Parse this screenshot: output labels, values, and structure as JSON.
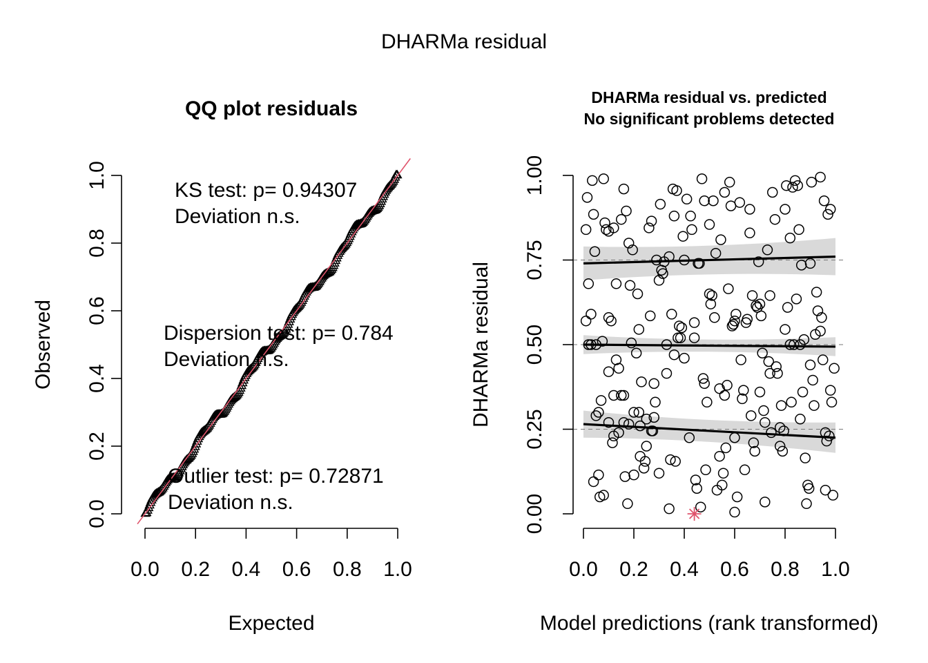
{
  "main_title": "DHARMa residual",
  "chart_data": [
    {
      "type": "scatter",
      "title": "QQ plot residuals",
      "xlabel": "Expected",
      "ylabel": "Observed",
      "xlim": [
        0,
        1
      ],
      "ylim": [
        0,
        1
      ],
      "x_ticks": [
        "0.0",
        "0.2",
        "0.4",
        "0.6",
        "0.8",
        "1.0"
      ],
      "y_ticks": [
        "0.0",
        "0.2",
        "0.4",
        "0.6",
        "0.8",
        "1.0"
      ],
      "reference_line": {
        "slope": 1,
        "intercept": 0,
        "color": "#DF536B"
      },
      "point_marker": "triangle",
      "n_points": 250,
      "annotations": [
        {
          "line1": "KS test: p= 0.94307",
          "line2": "Deviation  n.s."
        },
        {
          "line1": "Dispersion test: p= 0.784",
          "line2": "Deviation  n.s."
        },
        {
          "line1": "Outlier test: p= 0.72871",
          "line2": "Deviation  n.s."
        }
      ]
    },
    {
      "type": "scatter",
      "title_line1": "DHARMa residual vs. predicted",
      "title_line2": "No significant problems detected",
      "xlabel": "Model predictions (rank transformed)",
      "ylabel": "DHARMa residual",
      "xlim": [
        0,
        1
      ],
      "ylim": [
        0,
        1
      ],
      "x_ticks": [
        "0.0",
        "0.2",
        "0.4",
        "0.6",
        "0.8",
        "1.0"
      ],
      "y_ticks": [
        "0.00",
        "0.25",
        "0.50",
        "0.75",
        "1.00"
      ],
      "reference_lines_y": [
        0.25,
        0.5,
        0.75
      ],
      "quantile_fits": [
        {
          "quantile": 0.25,
          "y_start": 0.265,
          "y_end": 0.225,
          "band_halfwidth_start": 0.03,
          "band_halfwidth_end": 0.035
        },
        {
          "quantile": 0.5,
          "y_start": 0.5,
          "y_end": 0.494,
          "band_halfwidth_start": 0.018,
          "band_halfwidth_end": 0.018
        },
        {
          "quantile": 0.75,
          "y_start": 0.74,
          "y_end": 0.76,
          "band_halfwidth_start": 0.04,
          "band_halfwidth_end": 0.045
        }
      ],
      "outliers": [
        {
          "x": 0.44,
          "y": 0.0,
          "color": "#DF536B"
        }
      ],
      "points": [
        [
          0.01,
          0.84
        ],
        [
          0.01,
          0.57
        ],
        [
          0.015,
          0.935
        ],
        [
          0.02,
          0.5
        ],
        [
          0.02,
          0.68
        ],
        [
          0.03,
          0.59
        ],
        [
          0.03,
          0.5
        ],
        [
          0.035,
          0.985
        ],
        [
          0.04,
          0.885
        ],
        [
          0.045,
          0.775
        ],
        [
          0.05,
          0.29
        ],
        [
          0.05,
          0.5
        ],
        [
          0.06,
          0.115
        ],
        [
          0.065,
          0.05
        ],
        [
          0.07,
          0.335
        ],
        [
          0.075,
          0.51
        ],
        [
          0.08,
          0.99
        ],
        [
          0.085,
          0.86
        ],
        [
          0.09,
          0.84
        ],
        [
          0.1,
          0.835
        ],
        [
          0.1,
          0.42
        ],
        [
          0.1,
          0.58
        ],
        [
          0.11,
          0.57
        ],
        [
          0.115,
          0.21
        ],
        [
          0.12,
          0.845
        ],
        [
          0.12,
          0.23
        ],
        [
          0.13,
          0.68
        ],
        [
          0.13,
          0.455
        ],
        [
          0.14,
          0.43
        ],
        [
          0.15,
          0.35
        ],
        [
          0.15,
          0.87
        ],
        [
          0.16,
          0.27
        ],
        [
          0.16,
          0.35
        ],
        [
          0.165,
          0.11
        ],
        [
          0.17,
          0.895
        ],
        [
          0.175,
          0.03
        ],
        [
          0.18,
          0.8
        ],
        [
          0.185,
          0.675
        ],
        [
          0.19,
          0.505
        ],
        [
          0.195,
          0.78
        ],
        [
          0.2,
          0.115
        ],
        [
          0.2,
          0.3
        ],
        [
          0.21,
          0.475
        ],
        [
          0.215,
          0.65
        ],
        [
          0.22,
          0.545
        ],
        [
          0.225,
          0.17
        ],
        [
          0.225,
          0.26
        ],
        [
          0.23,
          0.39
        ],
        [
          0.24,
          0.135
        ],
        [
          0.245,
          0.155
        ],
        [
          0.25,
          0.28
        ],
        [
          0.25,
          0.2
        ],
        [
          0.26,
          0.845
        ],
        [
          0.265,
          0.585
        ],
        [
          0.27,
          0.865
        ],
        [
          0.275,
          0.245
        ],
        [
          0.28,
          0.385
        ],
        [
          0.285,
          0.33
        ],
        [
          0.29,
          0.75
        ],
        [
          0.3,
          0.12
        ],
        [
          0.305,
          0.915
        ],
        [
          0.31,
          0.72
        ],
        [
          0.315,
          0.71
        ],
        [
          0.32,
          0.745
        ],
        [
          0.33,
          0.5
        ],
        [
          0.33,
          0.415
        ],
        [
          0.34,
          0.015
        ],
        [
          0.345,
          0.16
        ],
        [
          0.35,
          0.59
        ],
        [
          0.355,
          0.96
        ],
        [
          0.36,
          0.88
        ],
        [
          0.365,
          0.155
        ],
        [
          0.37,
          0.955
        ],
        [
          0.375,
          0.52
        ],
        [
          0.38,
          0.555
        ],
        [
          0.385,
          0.52
        ],
        [
          0.39,
          0.55
        ],
        [
          0.395,
          0.82
        ],
        [
          0.4,
          0.46
        ],
        [
          0.4,
          0.75
        ],
        [
          0.41,
          0.93
        ],
        [
          0.42,
          0.225
        ],
        [
          0.425,
          0.88
        ],
        [
          0.43,
          0.84
        ],
        [
          0.44,
          0.565
        ],
        [
          0.445,
          0.1
        ],
        [
          0.45,
          0.075
        ],
        [
          0.455,
          0.74
        ],
        [
          0.46,
          0.74
        ],
        [
          0.465,
          0.02
        ],
        [
          0.47,
          0.99
        ],
        [
          0.475,
          0.4
        ],
        [
          0.48,
          0.925
        ],
        [
          0.485,
          0.13
        ],
        [
          0.49,
          0.33
        ],
        [
          0.5,
          0.65
        ],
        [
          0.5,
          0.855
        ],
        [
          0.505,
          0.62
        ],
        [
          0.51,
          0.645
        ],
        [
          0.515,
          0.925
        ],
        [
          0.52,
          0.58
        ],
        [
          0.525,
          0.77
        ],
        [
          0.53,
          0.07
        ],
        [
          0.54,
          0.17
        ],
        [
          0.545,
          0.81
        ],
        [
          0.55,
          0.085
        ],
        [
          0.555,
          0.12
        ],
        [
          0.56,
          0.95
        ],
        [
          0.565,
          0.195
        ],
        [
          0.57,
          0.38
        ],
        [
          0.575,
          0.665
        ],
        [
          0.58,
          0.98
        ],
        [
          0.585,
          0.91
        ],
        [
          0.59,
          0.555
        ],
        [
          0.595,
          0.56
        ],
        [
          0.6,
          0.225
        ],
        [
          0.6,
          0.57
        ],
        [
          0.605,
          0.59
        ],
        [
          0.61,
          0.05
        ],
        [
          0.62,
          0.92
        ],
        [
          0.625,
          0.455
        ],
        [
          0.63,
          0.34
        ],
        [
          0.635,
          0.365
        ],
        [
          0.64,
          0.13
        ],
        [
          0.645,
          0.565
        ],
        [
          0.65,
          0.575
        ],
        [
          0.66,
          0.9
        ],
        [
          0.665,
          0.29
        ],
        [
          0.67,
          0.645
        ],
        [
          0.675,
          0.21
        ],
        [
          0.68,
          0.185
        ],
        [
          0.685,
          0.615
        ],
        [
          0.69,
          0.61
        ],
        [
          0.695,
          0.745
        ],
        [
          0.7,
          0.62
        ],
        [
          0.705,
          0.585
        ],
        [
          0.71,
          0.475
        ],
        [
          0.715,
          0.305
        ],
        [
          0.72,
          0.035
        ],
        [
          0.72,
          0.27
        ],
        [
          0.73,
          0.78
        ],
        [
          0.735,
          0.45
        ],
        [
          0.74,
          0.415
        ],
        [
          0.745,
          0.24
        ],
        [
          0.75,
          0.95
        ],
        [
          0.76,
          0.87
        ],
        [
          0.765,
          0.435
        ],
        [
          0.77,
          0.415
        ],
        [
          0.78,
          0.2
        ],
        [
          0.785,
          0.32
        ],
        [
          0.79,
          0.185
        ],
        [
          0.795,
          0.245
        ],
        [
          0.8,
          0.545
        ],
        [
          0.8,
          0.9
        ],
        [
          0.805,
          0.97
        ],
        [
          0.81,
          0.61
        ],
        [
          0.82,
          0.815
        ],
        [
          0.825,
          0.33
        ],
        [
          0.83,
          0.965
        ],
        [
          0.835,
          0.5
        ],
        [
          0.84,
          0.985
        ],
        [
          0.845,
          0.635
        ],
        [
          0.85,
          0.97
        ],
        [
          0.855,
          0.84
        ],
        [
          0.86,
          0.5
        ],
        [
          0.865,
          0.735
        ],
        [
          0.87,
          0.36
        ],
        [
          0.875,
          0.515
        ],
        [
          0.88,
          0.165
        ],
        [
          0.885,
          0.03
        ],
        [
          0.89,
          0.085
        ],
        [
          0.895,
          0.075
        ],
        [
          0.9,
          0.44
        ],
        [
          0.905,
          0.98
        ],
        [
          0.91,
          0.395
        ],
        [
          0.915,
          0.32
        ],
        [
          0.92,
          0.53
        ],
        [
          0.925,
          0.655
        ],
        [
          0.93,
          0.6
        ],
        [
          0.94,
          0.995
        ],
        [
          0.945,
          0.58
        ],
        [
          0.95,
          0.455
        ],
        [
          0.955,
          0.925
        ],
        [
          0.96,
          0.07
        ],
        [
          0.965,
          0.215
        ],
        [
          0.97,
          0.885
        ],
        [
          0.975,
          0.23
        ],
        [
          0.98,
          0.365
        ],
        [
          0.985,
          0.33
        ],
        [
          0.99,
          0.055
        ],
        [
          0.995,
          0.43
        ],
        [
          0.6,
          0.005
        ],
        [
          0.56,
          0.35
        ],
        [
          0.54,
          0.37
        ],
        [
          0.48,
          0.385
        ],
        [
          0.44,
          0.52
        ],
        [
          0.36,
          0.47
        ],
        [
          0.34,
          0.76
        ],
        [
          0.3,
          0.69
        ],
        [
          0.28,
          0.285
        ],
        [
          0.27,
          0.245
        ],
        [
          0.22,
          0.3
        ],
        [
          0.18,
          0.265
        ],
        [
          0.14,
          0.24
        ],
        [
          0.12,
          0.35
        ],
        [
          0.06,
          0.3
        ],
        [
          0.04,
          0.095
        ],
        [
          0.08,
          0.055
        ],
        [
          0.1,
          0.27
        ],
        [
          0.16,
          0.96
        ],
        [
          0.66,
          0.83
        ],
        [
          0.7,
          0.36
        ],
        [
          0.74,
          0.645
        ],
        [
          0.78,
          0.255
        ],
        [
          0.82,
          0.5
        ],
        [
          0.86,
          0.28
        ],
        [
          0.9,
          0.74
        ],
        [
          0.94,
          0.54
        ],
        [
          0.96,
          0.24
        ],
        [
          0.98,
          0.9
        ]
      ]
    }
  ]
}
